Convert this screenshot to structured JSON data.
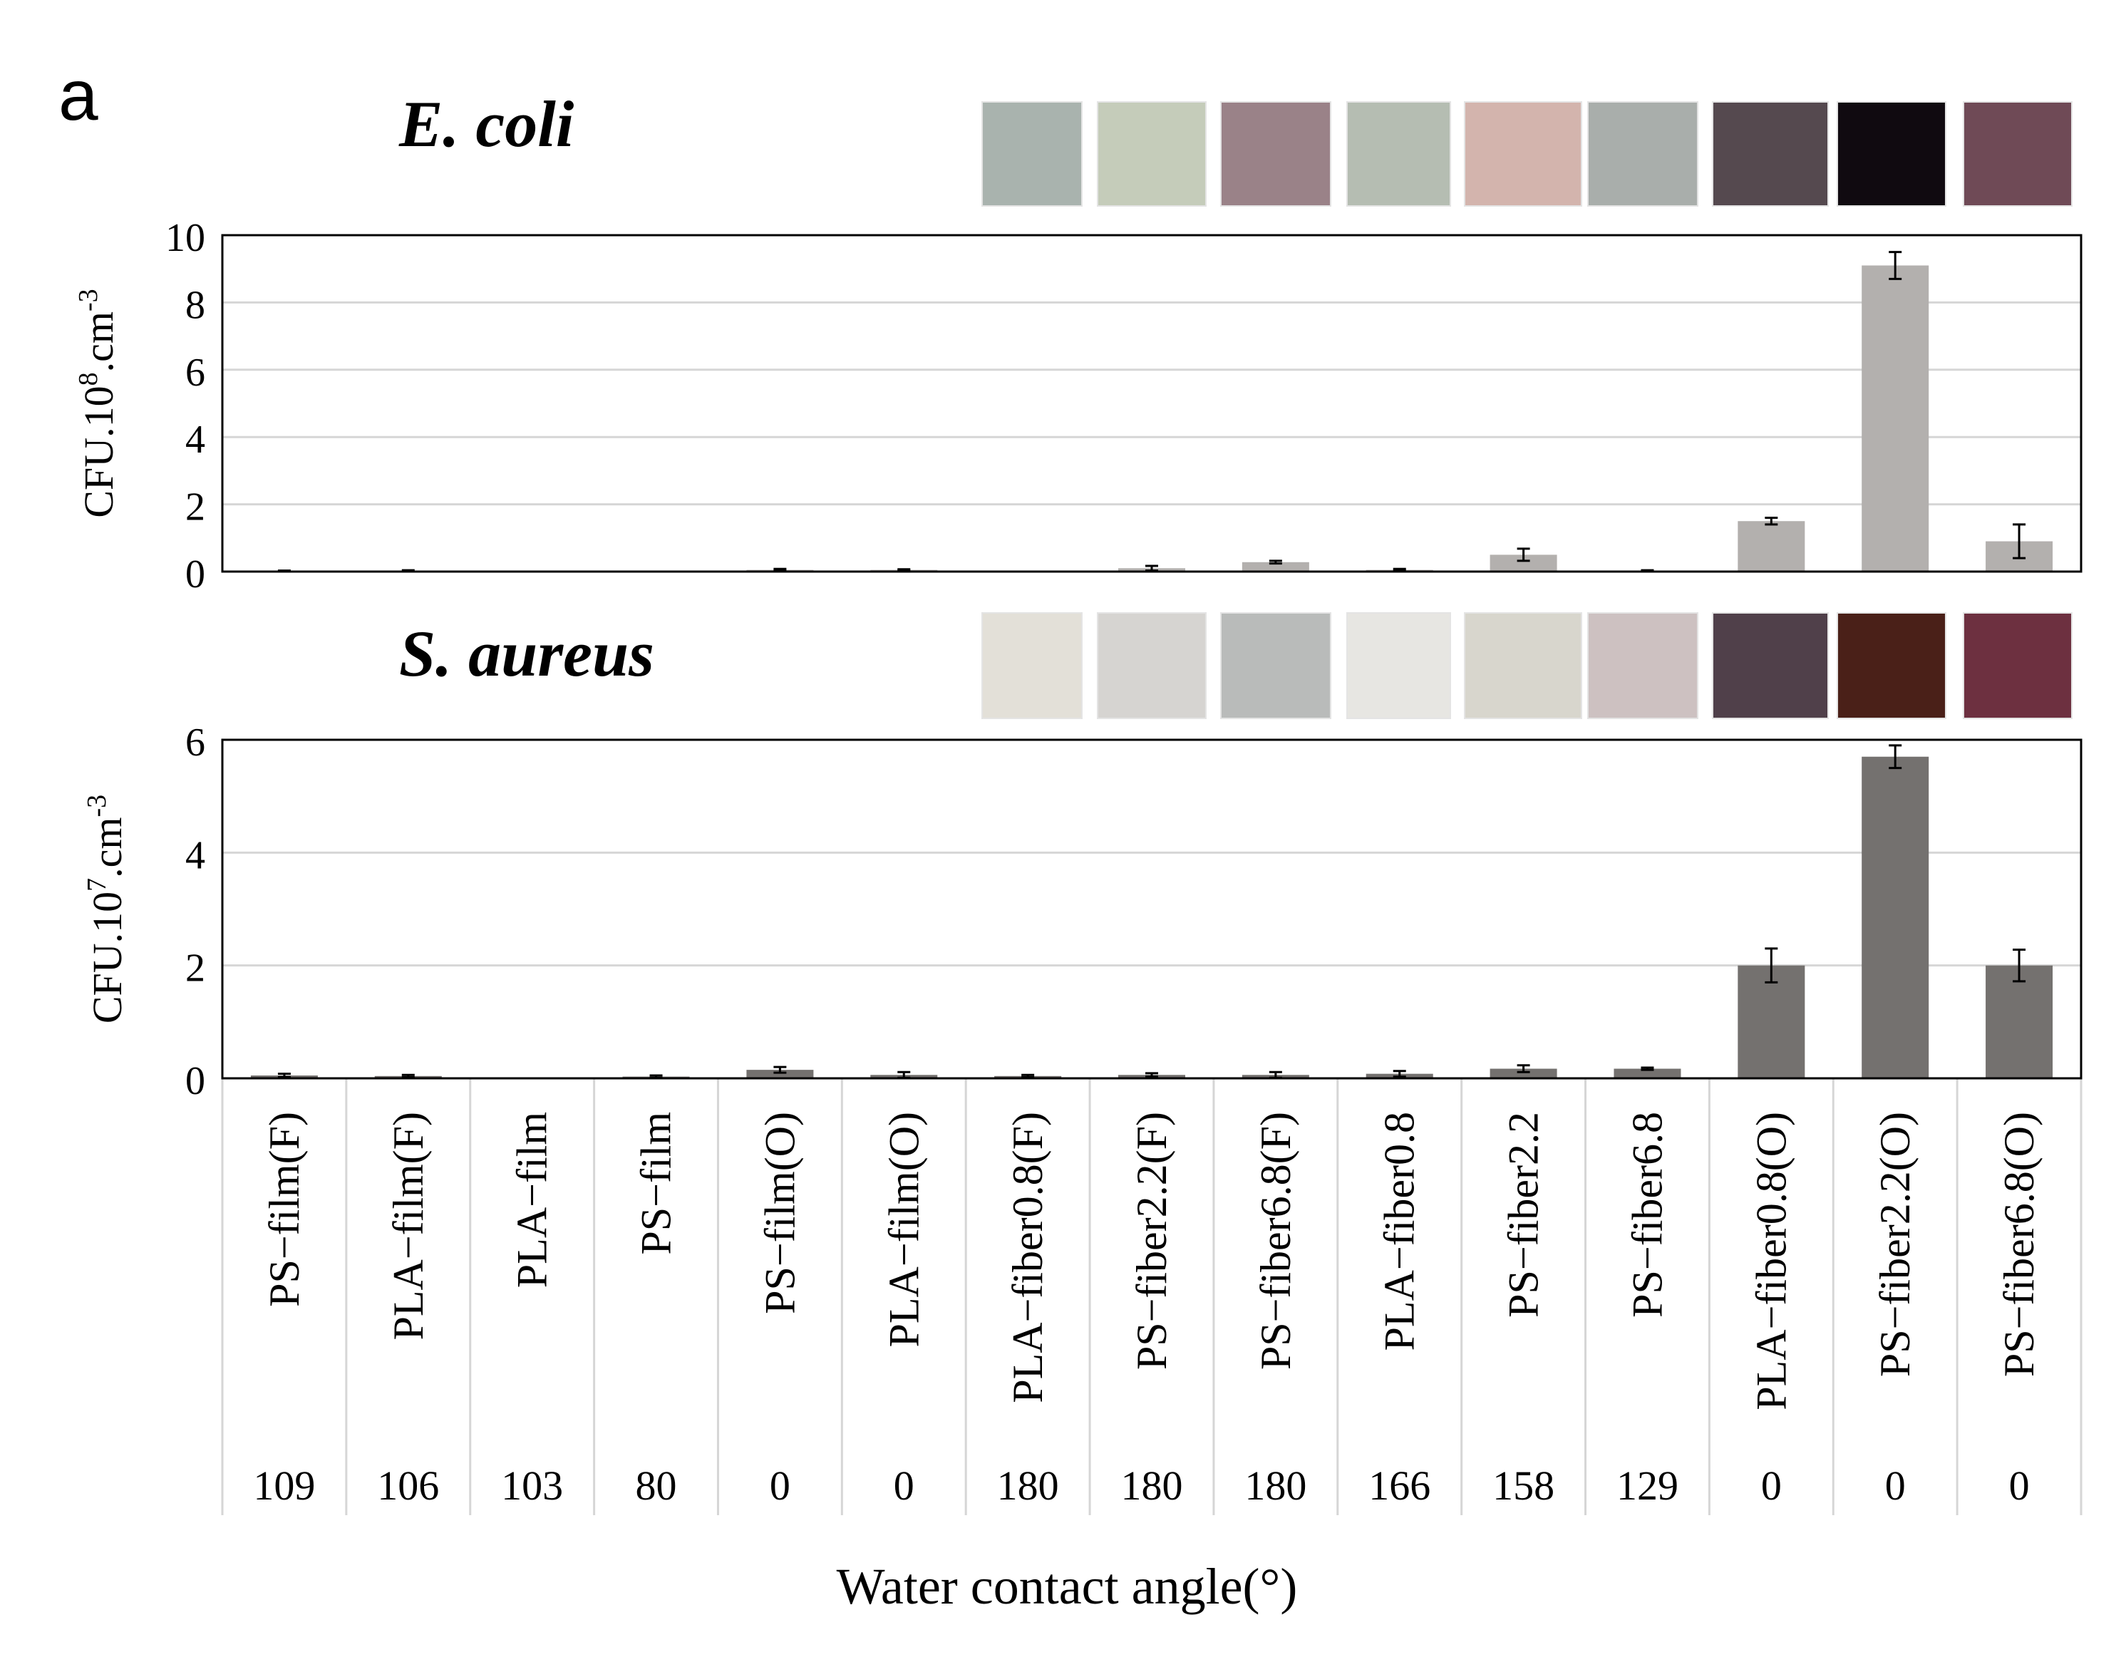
{
  "figure": {
    "panel_label": "a",
    "x_axis_title": "Water contact angle(°)"
  },
  "categories": [
    "PS−film(F)",
    "PLA−film(F)",
    "PLA−film",
    "PS−film",
    "PS−film(O)",
    "PLA−film(O)",
    "PLA−fiber0.8(F)",
    "PS−fiber2.2(F)",
    "PS−fiber6.8(F)",
    "PLA−fiber0.8",
    "PS−fiber2.2",
    "PS−fiber6.8",
    "PLA−fiber0.8(O)",
    "PS−fiber2.2(O)",
    "PS−fiber6.8(O)"
  ],
  "contact_angles": [
    "109",
    "106",
    "103",
    "80",
    "0",
    "0",
    "180",
    "180",
    "180",
    "166",
    "158",
    "129",
    "0",
    "0",
    "0"
  ],
  "chart_data": [
    {
      "type": "bar",
      "title": "E. coli",
      "ylabel_base": "CFU.10",
      "ylabel_exp": "8",
      "ylabel_unit": ".cm",
      "ylabel_unit_exp": "-3",
      "ylim": [
        0,
        10
      ],
      "yticks": [
        0,
        2,
        4,
        6,
        8,
        10
      ],
      "bar_color": "#b3b0ae",
      "values": [
        0.02,
        0.02,
        0.01,
        0.01,
        0.05,
        0.05,
        0.01,
        0.1,
        0.28,
        0.05,
        0.5,
        0.03,
        1.5,
        9.1,
        0.9
      ],
      "errors": [
        0.01,
        0.02,
        0.0,
        0.0,
        0.03,
        0.02,
        0.0,
        0.07,
        0.04,
        0.03,
        0.18,
        0.01,
        0.1,
        0.4,
        0.5
      ],
      "thumbnails": [
        "#a9b3ae",
        "#c5ccba",
        "#9a8288",
        "#b5bdb2",
        "#d3b4ad",
        "#a9aeab",
        "#55494f",
        "#100a10",
        "#6f4a56"
      ]
    },
    {
      "type": "bar",
      "title": "S. aureus",
      "ylabel_base": "CFU.10",
      "ylabel_exp": "7",
      "ylabel_unit": ".cm",
      "ylabel_unit_exp": "-3",
      "ylim": [
        0,
        6
      ],
      "yticks": [
        0,
        2,
        4,
        6
      ],
      "bar_color": "#74716f",
      "values": [
        0.05,
        0.04,
        0.01,
        0.03,
        0.15,
        0.06,
        0.04,
        0.06,
        0.06,
        0.08,
        0.17,
        0.17,
        2.0,
        5.7,
        2.0
      ],
      "errors": [
        0.03,
        0.02,
        0.0,
        0.02,
        0.05,
        0.05,
        0.02,
        0.03,
        0.05,
        0.05,
        0.06,
        0.02,
        0.3,
        0.2,
        0.28
      ],
      "thumbnails": [
        "#e3e0d8",
        "#d6d4d1",
        "#b9bbba",
        "#e7e6e2",
        "#d8d6cd",
        "#cdc1c1",
        "#50404a",
        "#4a2018",
        "#6d3040"
      ]
    }
  ]
}
